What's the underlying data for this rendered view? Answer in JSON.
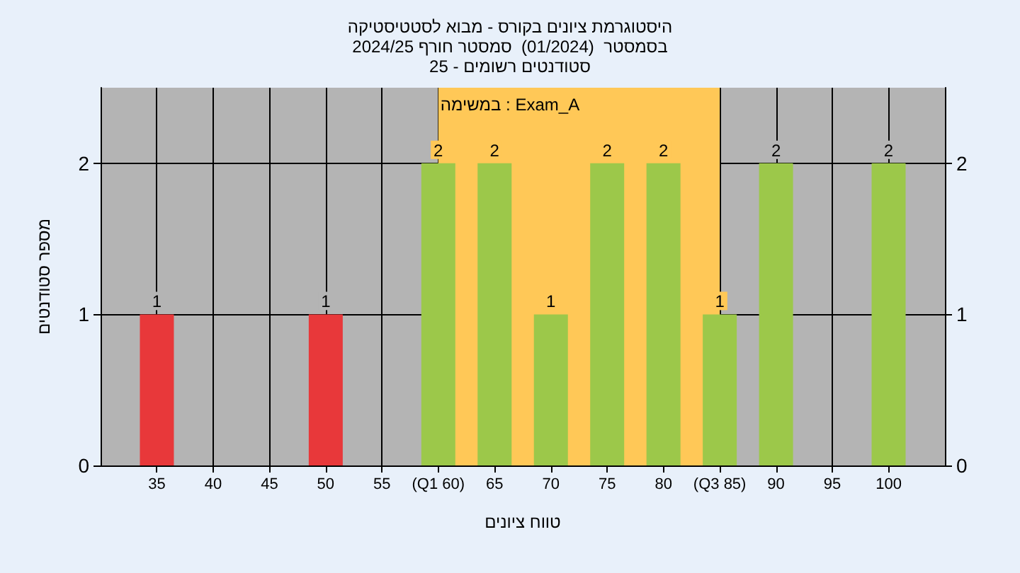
{
  "chart_data": {
    "type": "bar",
    "title": "היסטוגרמת ציונים בקורס - מבוא לסטטיסטיקה",
    "subtitle": "בסמסטר  (01/2024)  סמסטר חורף 2024/25\nסטודנטים רשומים - 25",
    "xlabel": "טווח ציונים",
    "ylabel": "מספר סטודנטים",
    "annotations": [
      "במשימה : Exam_A"
    ],
    "x": [
      35,
      50,
      60,
      65,
      70,
      75,
      80,
      85,
      90,
      100
    ],
    "values": [
      1,
      1,
      2,
      2,
      1,
      2,
      2,
      1,
      2,
      2
    ],
    "colors": [
      "#e8383a",
      "#e8383a",
      "#9cc84a",
      "#9cc84a",
      "#9cc84a",
      "#9cc84a",
      "#9cc84a",
      "#9cc84a",
      "#9cc84a",
      "#9cc84a"
    ],
    "data_labels": true,
    "bands": [
      {
        "axis": "x",
        "from": 60,
        "to": 85,
        "color": "#ffc857"
      }
    ],
    "xlim": [
      30,
      105
    ],
    "xticks": [
      35,
      40,
      45,
      50,
      55,
      {
        "value": 60,
        "label": "(Q1 60)"
      },
      65,
      70,
      75,
      80,
      {
        "value": 85,
        "label": "(Q3 85)"
      },
      90,
      95,
      100
    ],
    "ylim": [
      0,
      2.5
    ],
    "yticks": [
      0,
      1,
      2
    ],
    "y2lim": [
      0,
      2.5
    ],
    "y2ticks": [
      0,
      1,
      2
    ],
    "grid": true
  }
}
